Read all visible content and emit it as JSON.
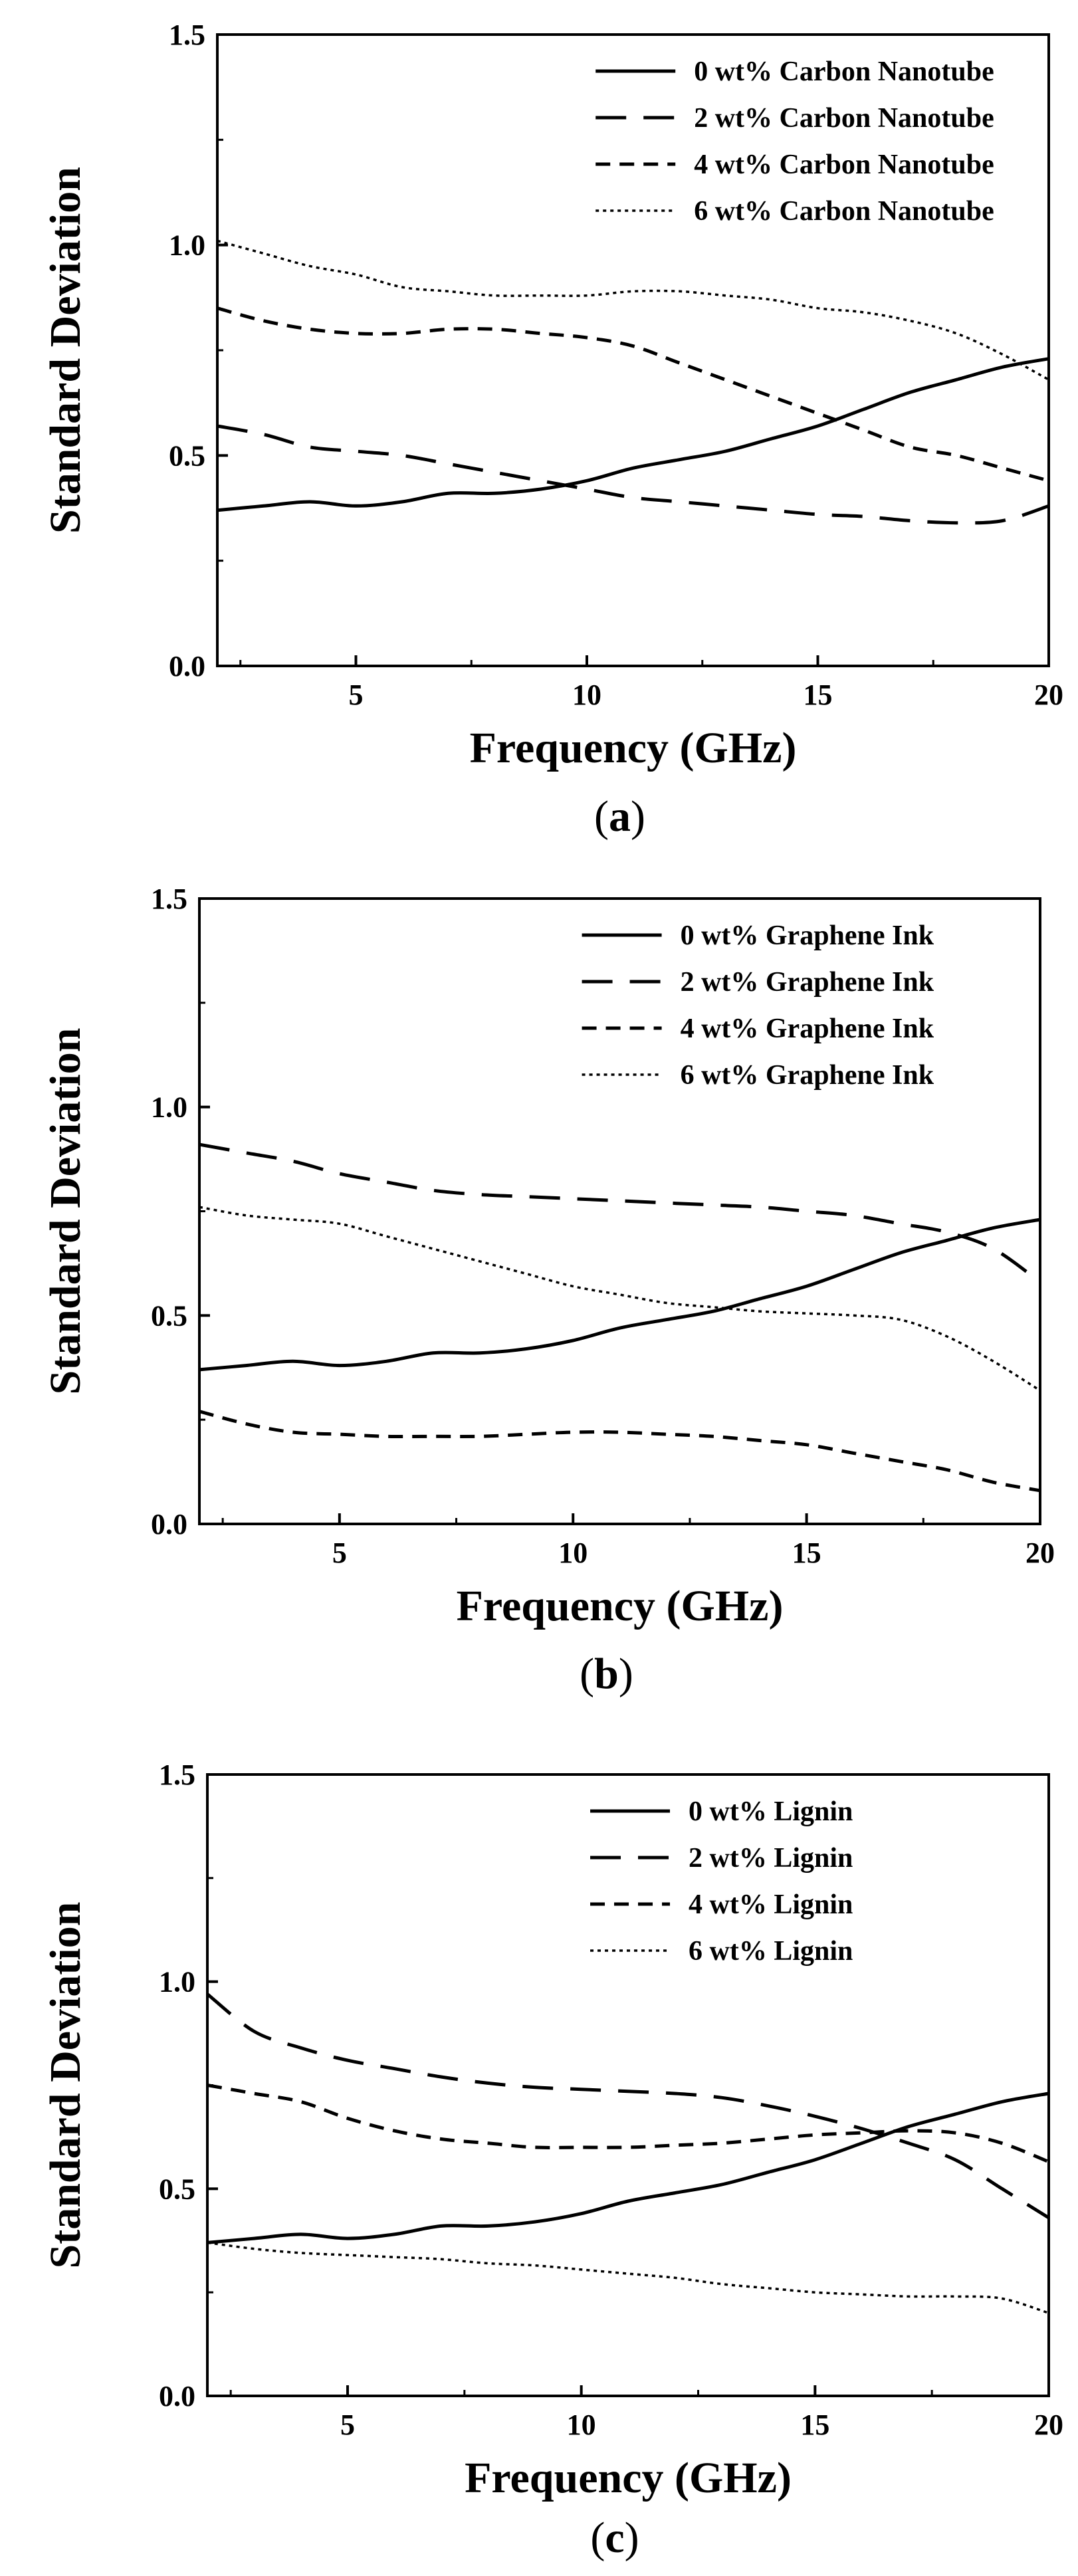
{
  "chart_data": [
    {
      "type": "line",
      "caption": "a",
      "xlabel": "Frequency (GHz)",
      "ylabel": "Standard Deviation",
      "xlim": [
        2,
        20
      ],
      "ylim": [
        0,
        1.5
      ],
      "x_ticks": [
        5,
        10,
        15,
        20
      ],
      "y_ticks": [
        "0.0",
        "0.5",
        "1.0",
        "1.5"
      ],
      "legend_position": "top-right",
      "series": [
        {
          "name": "0 wt% Carbon Nanotube",
          "style": "solid",
          "x": [
            2,
            3,
            4,
            5,
            6,
            7,
            8,
            9,
            10,
            11,
            12,
            13,
            14,
            15,
            16,
            17,
            18,
            19,
            20
          ],
          "y": [
            0.37,
            0.38,
            0.39,
            0.38,
            0.39,
            0.41,
            0.41,
            0.42,
            0.44,
            0.47,
            0.49,
            0.51,
            0.54,
            0.57,
            0.61,
            0.65,
            0.68,
            0.71,
            0.73
          ]
        },
        {
          "name": "2 wt% Carbon Nanotube",
          "style": "long-dash",
          "x": [
            2,
            3,
            4,
            5,
            6,
            7,
            8,
            9,
            10,
            11,
            12,
            13,
            14,
            15,
            16,
            17,
            18,
            19,
            20
          ],
          "y": [
            0.57,
            0.55,
            0.52,
            0.51,
            0.5,
            0.48,
            0.46,
            0.44,
            0.42,
            0.4,
            0.39,
            0.38,
            0.37,
            0.36,
            0.355,
            0.345,
            0.34,
            0.345,
            0.38
          ]
        },
        {
          "name": "4 wt% Carbon Nanotube",
          "style": "short-dash",
          "x": [
            2,
            3,
            4,
            5,
            6,
            7,
            8,
            9,
            10,
            11,
            12,
            13,
            14,
            15,
            16,
            17,
            18,
            19,
            20
          ],
          "y": [
            0.85,
            0.82,
            0.8,
            0.79,
            0.79,
            0.8,
            0.8,
            0.79,
            0.78,
            0.76,
            0.72,
            0.68,
            0.64,
            0.6,
            0.56,
            0.52,
            0.5,
            0.47,
            0.44
          ]
        },
        {
          "name": "6 wt% Carbon Nanotube",
          "style": "dotted",
          "x": [
            2,
            3,
            4,
            5,
            6,
            7,
            8,
            9,
            10,
            11,
            12,
            13,
            14,
            15,
            16,
            17,
            18,
            19,
            20
          ],
          "y": [
            1.01,
            0.98,
            0.95,
            0.93,
            0.9,
            0.89,
            0.88,
            0.88,
            0.88,
            0.89,
            0.89,
            0.88,
            0.87,
            0.85,
            0.84,
            0.82,
            0.79,
            0.74,
            0.68
          ]
        }
      ]
    },
    {
      "type": "line",
      "caption": "b",
      "xlabel": "Frequency (GHz)",
      "ylabel": "Standard Deviation",
      "xlim": [
        2,
        20
      ],
      "ylim": [
        0,
        1.5
      ],
      "x_ticks": [
        5,
        10,
        15,
        20
      ],
      "y_ticks": [
        "0.0",
        "0.5",
        "1.0",
        "1.5"
      ],
      "legend_position": "top-right",
      "series": [
        {
          "name": "0 wt% Graphene Ink",
          "style": "solid",
          "x": [
            2,
            3,
            4,
            5,
            6,
            7,
            8,
            9,
            10,
            11,
            12,
            13,
            14,
            15,
            16,
            17,
            18,
            19,
            20
          ],
          "y": [
            0.37,
            0.38,
            0.39,
            0.38,
            0.39,
            0.41,
            0.41,
            0.42,
            0.44,
            0.47,
            0.49,
            0.51,
            0.54,
            0.57,
            0.61,
            0.65,
            0.68,
            0.71,
            0.73
          ]
        },
        {
          "name": "2 wt% Graphene Ink",
          "style": "long-dash",
          "x": [
            2,
            3,
            4,
            5,
            6,
            7,
            8,
            9,
            10,
            11,
            12,
            13,
            14,
            15,
            16,
            17,
            18,
            19,
            20
          ],
          "y": [
            0.91,
            0.89,
            0.87,
            0.84,
            0.82,
            0.8,
            0.79,
            0.785,
            0.78,
            0.775,
            0.77,
            0.765,
            0.76,
            0.75,
            0.74,
            0.72,
            0.7,
            0.66,
            0.58
          ]
        },
        {
          "name": "4 wt% Graphene Ink",
          "style": "short-dash",
          "x": [
            2,
            3,
            4,
            5,
            6,
            7,
            8,
            9,
            10,
            11,
            12,
            13,
            14,
            15,
            16,
            17,
            18,
            19,
            20
          ],
          "y": [
            0.27,
            0.24,
            0.22,
            0.215,
            0.21,
            0.21,
            0.21,
            0.215,
            0.22,
            0.22,
            0.215,
            0.21,
            0.2,
            0.19,
            0.17,
            0.15,
            0.13,
            0.1,
            0.08
          ]
        },
        {
          "name": "6 wt% Graphene Ink",
          "style": "dotted",
          "x": [
            2,
            3,
            4,
            5,
            6,
            7,
            8,
            9,
            10,
            11,
            12,
            13,
            14,
            15,
            16,
            17,
            18,
            19,
            20
          ],
          "y": [
            0.76,
            0.74,
            0.73,
            0.72,
            0.69,
            0.66,
            0.63,
            0.6,
            0.57,
            0.55,
            0.53,
            0.52,
            0.51,
            0.505,
            0.5,
            0.49,
            0.45,
            0.39,
            0.32
          ]
        }
      ]
    },
    {
      "type": "line",
      "caption": "c",
      "xlabel": "Frequency (GHz)",
      "ylabel": "Standard Deviation",
      "xlim": [
        2,
        20
      ],
      "ylim": [
        0,
        1.5
      ],
      "x_ticks": [
        5,
        10,
        15,
        20
      ],
      "y_ticks": [
        "0.0",
        "0.5",
        "1.0",
        "1.5"
      ],
      "legend_position": "top-right",
      "series": [
        {
          "name": "0 wt% Lignin",
          "style": "solid",
          "x": [
            2,
            3,
            4,
            5,
            6,
            7,
            8,
            9,
            10,
            11,
            12,
            13,
            14,
            15,
            16,
            17,
            18,
            19,
            20
          ],
          "y": [
            0.37,
            0.38,
            0.39,
            0.38,
            0.39,
            0.41,
            0.41,
            0.42,
            0.44,
            0.47,
            0.49,
            0.51,
            0.54,
            0.57,
            0.61,
            0.65,
            0.68,
            0.71,
            0.73
          ]
        },
        {
          "name": "2 wt% Lignin",
          "style": "long-dash",
          "x": [
            2,
            3,
            4,
            5,
            6,
            7,
            8,
            9,
            10,
            11,
            12,
            13,
            14,
            15,
            16,
            17,
            18,
            19,
            20
          ],
          "y": [
            0.97,
            0.88,
            0.84,
            0.81,
            0.79,
            0.77,
            0.755,
            0.745,
            0.74,
            0.735,
            0.73,
            0.72,
            0.7,
            0.675,
            0.645,
            0.61,
            0.57,
            0.5,
            0.43
          ]
        },
        {
          "name": "4 wt% Lignin",
          "style": "short-dash",
          "x": [
            2,
            3,
            4,
            5,
            6,
            7,
            8,
            9,
            10,
            11,
            12,
            13,
            14,
            15,
            16,
            17,
            18,
            19,
            20
          ],
          "y": [
            0.75,
            0.73,
            0.71,
            0.67,
            0.64,
            0.62,
            0.61,
            0.6,
            0.6,
            0.6,
            0.605,
            0.61,
            0.62,
            0.63,
            0.635,
            0.64,
            0.635,
            0.61,
            0.565
          ]
        },
        {
          "name": "6 wt% Lignin",
          "style": "dotted",
          "x": [
            2,
            3,
            4,
            5,
            6,
            7,
            8,
            9,
            10,
            11,
            12,
            13,
            14,
            15,
            16,
            17,
            18,
            19,
            20
          ],
          "y": [
            0.37,
            0.355,
            0.345,
            0.34,
            0.335,
            0.33,
            0.32,
            0.315,
            0.305,
            0.295,
            0.285,
            0.27,
            0.26,
            0.25,
            0.245,
            0.24,
            0.24,
            0.235,
            0.2
          ]
        }
      ]
    }
  ]
}
